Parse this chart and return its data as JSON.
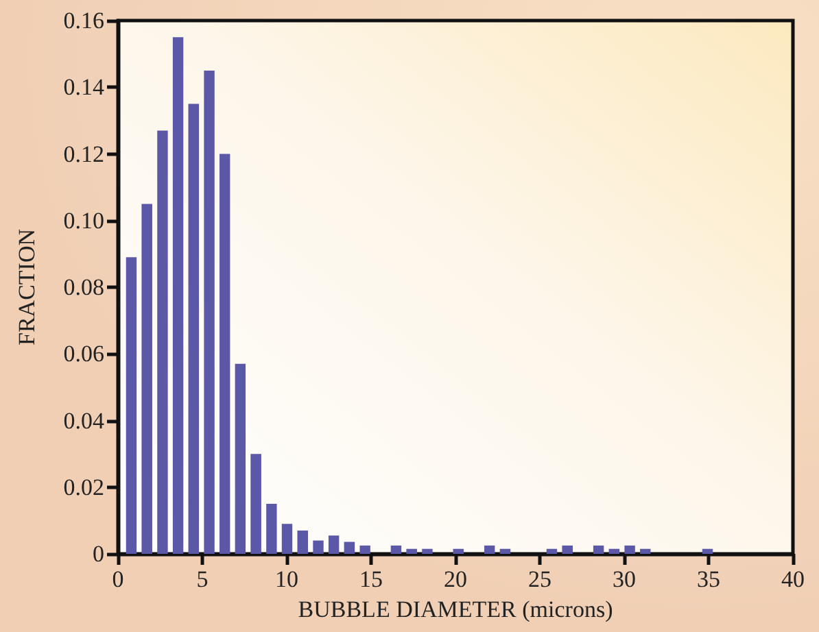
{
  "chart_data": {
    "type": "histogram",
    "xlabel": "BUBBLE DIAMETER (microns)",
    "ylabel": "FRACTION",
    "bins": [
      0.33,
      1.25,
      2.18,
      3.1,
      4.02,
      4.95,
      5.87,
      6.79,
      7.71,
      8.64,
      9.56,
      10.48,
      11.41,
      12.33,
      13.25,
      14.18,
      15.1,
      16.02,
      16.94,
      17.87,
      18.79,
      19.71,
      20.64,
      21.56,
      22.48,
      23.41,
      24.33,
      25.25,
      26.17,
      27.1,
      28.02,
      28.94,
      29.87,
      30.79,
      31.71,
      32.64,
      33.56,
      34.48,
      35.4
    ],
    "values": [
      0.089,
      0.105,
      0.127,
      0.155,
      0.135,
      0.145,
      0.12,
      0.057,
      0.03,
      0.015,
      0.009,
      0.007,
      0.004,
      0.0055,
      0.0036,
      0.0025,
      0,
      0.0025,
      0.0015,
      0.0015,
      0,
      0.0015,
      0,
      0.0025,
      0.0015,
      0,
      0,
      0.0015,
      0.0025,
      0,
      0.0025,
      0.0015,
      0.0025,
      0.0015,
      0,
      0,
      0,
      0.0015
    ],
    "color": "#5b58a8",
    "xlim": [
      0,
      40
    ],
    "xticks": [
      0,
      5,
      10,
      15,
      20,
      25,
      30,
      35,
      40
    ],
    "ylim": [
      0,
      0.16
    ],
    "yticks": [
      0,
      0.02,
      0.04,
      0.06,
      0.08,
      {
        "value": 0.1,
        "label": "0.10"
      },
      0.12,
      0.14,
      0.16
    ],
    "grid": false
  }
}
